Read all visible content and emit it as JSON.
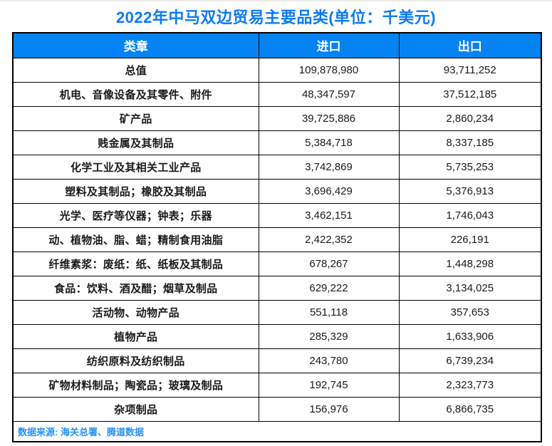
{
  "title": "2022年中马双边贸易主要品类(单位：千美元)",
  "colors": {
    "title_blue": "#0b7bf2",
    "header_bg_blue": "#0583f2",
    "header_text": "#ffffff",
    "body_text": "#1a1a1a",
    "source_blue": "#2492f5",
    "border": "#000000"
  },
  "table": {
    "headers": [
      "类章",
      "进口",
      "出口"
    ],
    "rows": [
      {
        "category": "总值",
        "import": "109,878,980",
        "export": "93,711,252"
      },
      {
        "category": "机电、音像设备及其零件、附件",
        "import": "48,347,597",
        "export": "37,512,185"
      },
      {
        "category": "矿产品",
        "import": "39,725,886",
        "export": "2,860,234"
      },
      {
        "category": "贱金属及其制品",
        "import": "5,384,718",
        "export": "8,337,185"
      },
      {
        "category": "化学工业及其相关工业产品",
        "import": "3,742,869",
        "export": "5,735,253"
      },
      {
        "category": "塑料及其制品；橡胶及其制品",
        "import": "3,696,429",
        "export": "5,376,913"
      },
      {
        "category": "光学、医疗等仪器；钟表；乐器",
        "import": "3,462,151",
        "export": "1,746,043"
      },
      {
        "category": "动、植物油、脂、蜡；精制食用油脂",
        "import": "2,422,352",
        "export": "226,191"
      },
      {
        "category": "纤维素浆：废纸：纸、纸板及其制品",
        "import": "678,267",
        "export": "1,448,298"
      },
      {
        "category": "食品：饮料、酒及醋；烟草及制品",
        "import": "629,222",
        "export": "3,134,025"
      },
      {
        "category": "活动物、动物产品",
        "import": "551,118",
        "export": "357,653"
      },
      {
        "category": "植物产品",
        "import": "285,329",
        "export": "1,633,906"
      },
      {
        "category": "纺织原料及纺织制品",
        "import": "243,780",
        "export": "6,739,234"
      },
      {
        "category": "矿物材料制品；陶瓷品；玻璃及制品",
        "import": "192,745",
        "export": "2,323,773"
      },
      {
        "category": "杂项制品",
        "import": "156,976",
        "export": "6,866,735"
      }
    ],
    "source_note": "数据来源: 海关总署、腾道数据"
  },
  "chart_data": {
    "type": "table",
    "title": "2022年中马双边贸易主要品类(单位：千美元)",
    "unit": "千美元",
    "columns": [
      "类章",
      "进口",
      "出口"
    ],
    "rows": [
      [
        "总值",
        109878980,
        93711252
      ],
      [
        "机电、音像设备及其零件、附件",
        48347597,
        37512185
      ],
      [
        "矿产品",
        39725886,
        2860234
      ],
      [
        "贱金属及其制品",
        5384718,
        8337185
      ],
      [
        "化学工业及其相关工业产品",
        3742869,
        5735253
      ],
      [
        "塑料及其制品；橡胶及其制品",
        3696429,
        5376913
      ],
      [
        "光学、医疗等仪器；钟表；乐器",
        3462151,
        1746043
      ],
      [
        "动、植物油、脂、蜡；精制食用油脂",
        2422352,
        226191
      ],
      [
        "纤维素浆：废纸：纸、纸板及其制品",
        678267,
        1448298
      ],
      [
        "食品：饮料、酒及醋；烟草及制品",
        629222,
        3134025
      ],
      [
        "活动物、动物产品",
        551118,
        357653
      ],
      [
        "植物产品",
        285329,
        1633906
      ],
      [
        "纺织原料及纺织制品",
        243780,
        6739234
      ],
      [
        "矿物材料制品；陶瓷品；玻璃及制品",
        192745,
        2323773
      ],
      [
        "杂项制品",
        156976,
        6866735
      ]
    ],
    "source": "数据来源: 海关总署、腾道数据"
  }
}
